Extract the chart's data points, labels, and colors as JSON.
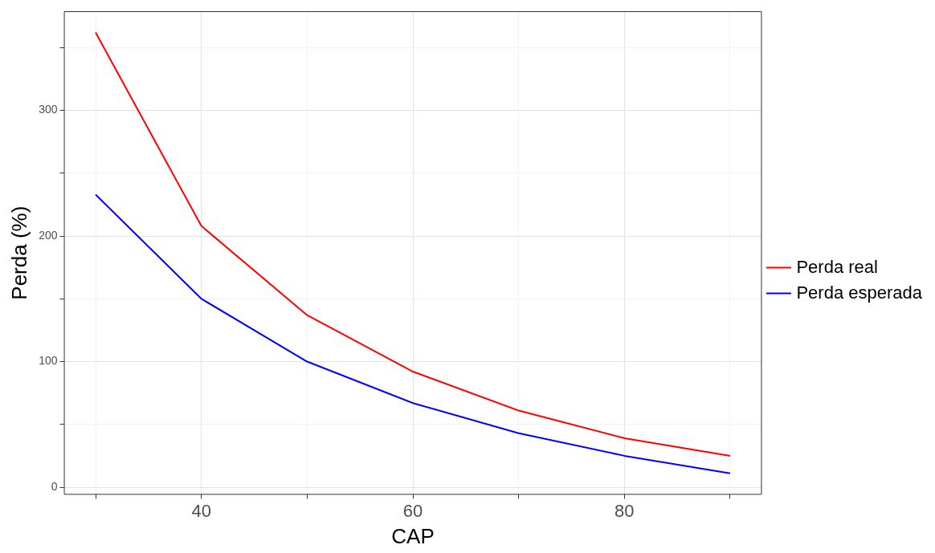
{
  "chart_data": {
    "type": "line",
    "xlabel": "CAP",
    "ylabel": "Perda (%)",
    "x": [
      30,
      40,
      50,
      60,
      70,
      80,
      90
    ],
    "series": [
      {
        "name": "Perda real",
        "color": "#ff0000",
        "values": [
          362,
          208,
          137,
          92,
          61,
          39,
          25
        ]
      },
      {
        "name": "Perda esperada",
        "color": "#0000ff",
        "values": [
          233,
          150,
          100,
          67,
          43,
          25,
          11
        ]
      }
    ],
    "xlim": [
      27,
      93
    ],
    "xticks": [
      {
        "value": 30,
        "label": null
      },
      40,
      {
        "value": 50,
        "label": null
      },
      60,
      {
        "value": 70,
        "label": null
      },
      80,
      {
        "value": 90,
        "label": null
      }
    ],
    "ylim": [
      -6,
      379
    ],
    "yticks": [
      0,
      {
        "value": 50,
        "label": null
      },
      100,
      {
        "value": 150,
        "label": null
      },
      200,
      {
        "value": 250,
        "label": null
      },
      300,
      {
        "value": 350,
        "label": null
      }
    ],
    "grid": true,
    "legend": "right",
    "marker": "none",
    "line_style": "solid"
  }
}
